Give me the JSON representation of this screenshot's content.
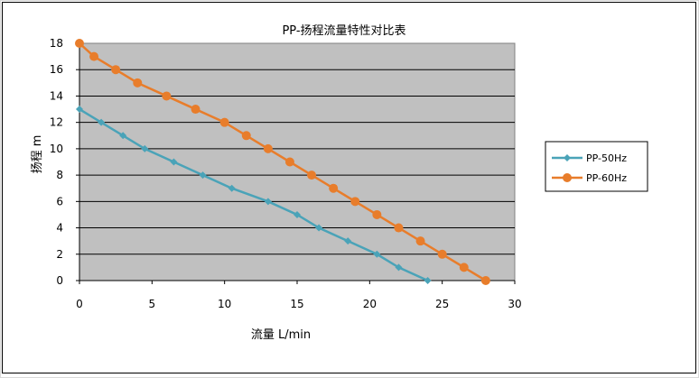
{
  "chart_data": {
    "type": "line",
    "title": "PP-扬程流量特性对比表",
    "xlabel": "流量  L/min",
    "ylabel": "扬程 m",
    "xlim": [
      0,
      30
    ],
    "ylim": [
      0,
      18
    ],
    "xticks": [
      "0",
      "5",
      "10",
      "15",
      "20",
      "25",
      "30"
    ],
    "yticks": [
      "0",
      "2",
      "4",
      "6",
      "8",
      "10",
      "12",
      "14",
      "16",
      "18"
    ],
    "grid": "horizontal",
    "plot_background": "#c0c0c0",
    "legend_position": "right",
    "series": [
      {
        "name": "PP-50Hz",
        "color": "#4aa3b8",
        "marker": "diamond",
        "x": [
          0,
          1.5,
          3,
          4.5,
          6.5,
          8.5,
          10.5,
          13,
          15,
          16.5,
          18.5,
          20.5,
          22,
          24
        ],
        "y": [
          13,
          12,
          11,
          10,
          9,
          8,
          7,
          6,
          5,
          4,
          3,
          2,
          1,
          0
        ]
      },
      {
        "name": "PP-60Hz",
        "color": "#e87d2b",
        "marker": "circle",
        "x": [
          0,
          1,
          2.5,
          4,
          6,
          8,
          10,
          11.5,
          13,
          14.5,
          16,
          17.5,
          19,
          20.5,
          22,
          23.5,
          25,
          26.5,
          28
        ],
        "y": [
          18,
          17,
          16,
          15,
          14,
          13,
          12,
          11,
          10,
          9,
          8,
          7,
          6,
          5,
          4,
          3,
          2,
          1,
          0
        ]
      }
    ]
  }
}
